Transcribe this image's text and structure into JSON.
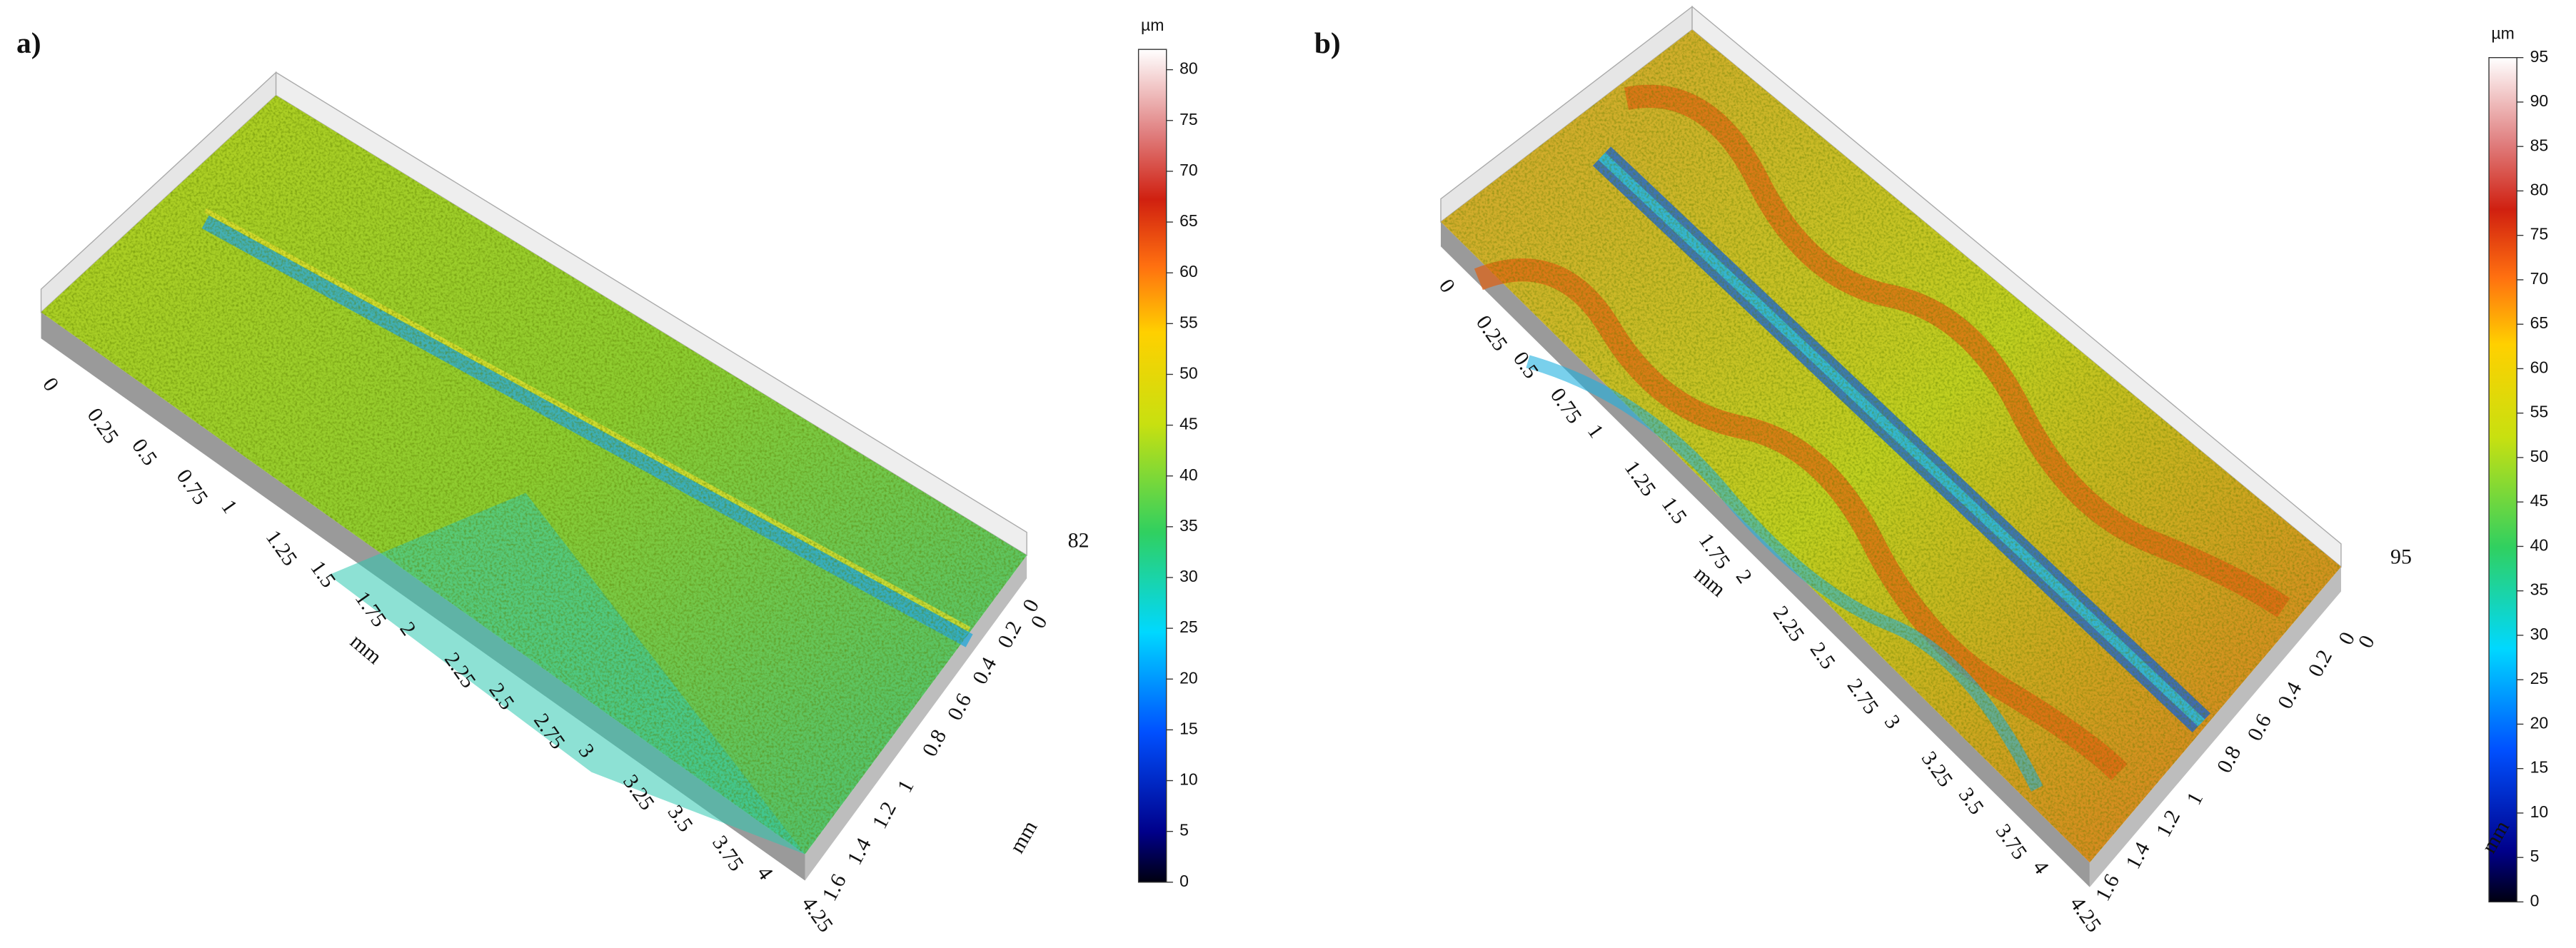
{
  "panels": [
    {
      "label": "a)",
      "x_axis": {
        "title": "mm",
        "ticks": [
          "0",
          "0.25",
          "0.5",
          "0.75",
          "1",
          "1.25",
          "1.5",
          "1.75",
          "2",
          "2.25",
          "2.5",
          "2.75",
          "3",
          "3.25",
          "3.5",
          "3.75",
          "4",
          "4.25"
        ]
      },
      "y_axis": {
        "title": "mm",
        "ticks": [
          "0",
          "0.2",
          "0.4",
          "0.6",
          "0.8",
          "1",
          "1.2",
          "1.4",
          "1.6"
        ]
      },
      "z_axis": {
        "ticks": [
          "0",
          "82"
        ]
      },
      "colorbar": {
        "unit": "µm",
        "max": 82,
        "ticks": [
          0,
          5,
          10,
          15,
          20,
          25,
          30,
          35,
          40,
          45,
          50,
          55,
          60,
          65,
          70,
          75,
          80
        ]
      }
    },
    {
      "label": "b)",
      "x_axis": {
        "title": "mm",
        "ticks": [
          "0",
          "0.25",
          "0.5",
          "0.75",
          "1",
          "1.25",
          "1.5",
          "1.75",
          "2",
          "2.25",
          "2.5",
          "2.75",
          "3",
          "3.25",
          "3.5",
          "3.75",
          "4",
          "4.25"
        ]
      },
      "y_axis": {
        "title": "mm",
        "ticks": [
          "0",
          "0.2",
          "0.4",
          "0.6",
          "0.8",
          "1",
          "1.2",
          "1.4",
          "1.6"
        ]
      },
      "z_axis": {
        "ticks": [
          "0",
          "95"
        ]
      },
      "colorbar": {
        "unit": "µm",
        "max": 95,
        "ticks": [
          0,
          5,
          10,
          15,
          20,
          25,
          30,
          35,
          40,
          45,
          50,
          55,
          60,
          65,
          70,
          75,
          80,
          85,
          90,
          95
        ]
      }
    }
  ]
}
